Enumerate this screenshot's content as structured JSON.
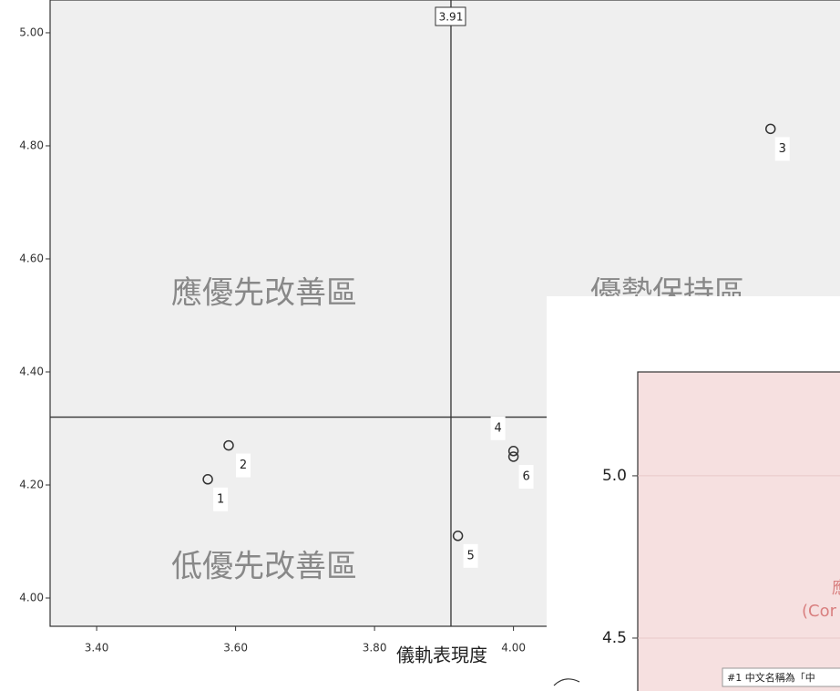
{
  "chart_data": [
    {
      "type": "scatter",
      "x_label": "儀軌表現度",
      "x": [
        3.56,
        3.59,
        4.37,
        4.0,
        3.92,
        4.0
      ],
      "values": [
        4.21,
        4.27,
        4.83,
        4.26,
        4.11,
        4.25
      ],
      "point_labels": [
        "1",
        "2",
        "3",
        "4",
        "5",
        "6"
      ],
      "xlim": [
        3.333,
        4.47
      ],
      "ylim": [
        3.95,
        5.058
      ],
      "xticks": [
        {
          "value": 3.4,
          "label": "3.40"
        },
        {
          "value": 3.6,
          "label": "3.60"
        },
        {
          "value": 3.8,
          "label": "3.80"
        },
        {
          "value": 4.0,
          "label": "4.00"
        }
      ],
      "yticks": [
        {
          "value": 4.0,
          "label": "4.00"
        },
        {
          "value": 4.2,
          "label": "4.20"
        },
        {
          "value": 4.4,
          "label": "4.40"
        },
        {
          "value": 4.6,
          "label": "4.60"
        },
        {
          "value": 4.8,
          "label": "4.80"
        },
        {
          "value": 5.0,
          "label": "5.00"
        }
      ],
      "x_ref": 3.91,
      "y_ref": 4.32,
      "annotations": [
        "應優先改善區",
        "優勢保持區",
        "低優先改善區"
      ],
      "color": "#333333"
    },
    {
      "type": "scatter",
      "ylim": [
        4.337,
        5.32
      ],
      "yticks": [
        4.5,
        {
          "value": 5.0,
          "label": "5.0"
        }
      ],
      "annotations": [
        "應",
        "(Cor"
      ],
      "note": "#1 中文名稱為「中",
      "color": "#f6e0e0"
    }
  ]
}
